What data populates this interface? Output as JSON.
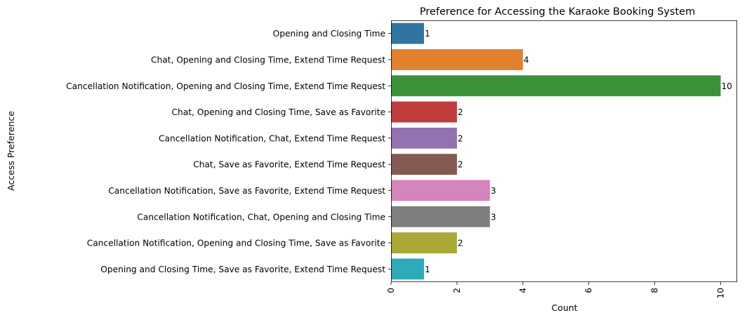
{
  "chart_data": {
    "type": "bar",
    "orientation": "horizontal",
    "title": "Preference for Accessing the Karaoke Booking System",
    "xlabel": "Count",
    "ylabel": "Access Preference",
    "xlim": [
      0,
      10.5
    ],
    "xticks": [
      0,
      2,
      4,
      6,
      8,
      10
    ],
    "grid": false,
    "legend": "none",
    "categories": [
      "Opening and Closing Time",
      "Chat, Opening and Closing Time, Extend Time Request",
      "Cancellation Notification, Opening and Closing Time, Extend Time Request",
      "Chat, Opening and Closing Time, Save as Favorite",
      "Cancellation Notification, Chat, Extend Time Request",
      "Chat, Save as Favorite, Extend Time Request",
      "Cancellation Notification, Save as Favorite, Extend Time Request",
      "Cancellation Notification, Chat, Opening and Closing Time",
      "Cancellation Notification, Opening and Closing Time, Save as Favorite",
      "Opening and Closing Time, Save as Favorite, Extend Time Request"
    ],
    "values": [
      1,
      4,
      10,
      2,
      2,
      2,
      3,
      3,
      2,
      1
    ],
    "colors": [
      "#3274a1",
      "#e1812c",
      "#3a923a",
      "#c03d3e",
      "#9372b2",
      "#845b53",
      "#d684bd",
      "#7f7f7f",
      "#a9aa35",
      "#2eaab8"
    ]
  }
}
